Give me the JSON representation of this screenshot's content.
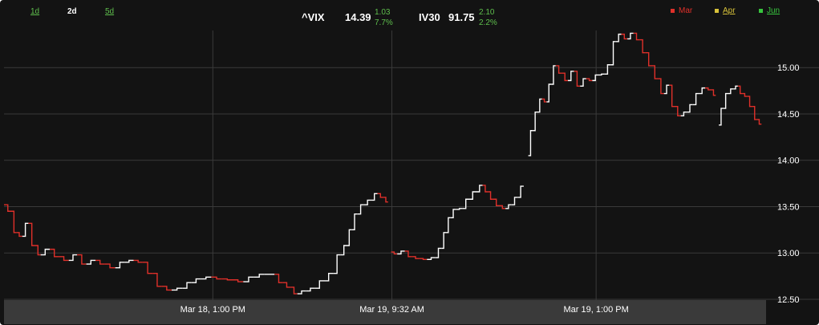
{
  "range_tabs": [
    {
      "label": "1d",
      "active": false
    },
    {
      "label": "2d",
      "active": true
    },
    {
      "label": "5d",
      "active": false
    }
  ],
  "quotes": [
    {
      "symbol": "^VIX",
      "price": "14.39",
      "change": "1.03",
      "change_pct": "7.7%"
    },
    {
      "symbol": "IV30",
      "price": "91.75",
      "change": "2.10",
      "change_pct": "2.2%"
    }
  ],
  "legend": [
    {
      "label": "Mar",
      "color": "#e0302a",
      "active": true
    },
    {
      "label": "Apr",
      "color": "#d8c23a",
      "active": false
    },
    {
      "label": "Jun",
      "color": "#37c63e",
      "active": false
    }
  ],
  "colors": {
    "background": "#131313",
    "axis_band": "#3a3a3a",
    "grid": "#3a3a3a",
    "line_up": "#ffffff",
    "line_down": "#e0302a",
    "change_positive": "#5fbf4d"
  },
  "chart_data": {
    "type": "line",
    "y_axis_position": "right",
    "grid": true,
    "ylim": [
      12.5,
      15.4
    ],
    "y_ticks": [
      {
        "value": 12.5,
        "label": "12.50"
      },
      {
        "value": 13.0,
        "label": "13.00"
      },
      {
        "value": 13.5,
        "label": "13.50"
      },
      {
        "value": 14.0,
        "label": "14.00"
      },
      {
        "value": 14.5,
        "label": "14.50"
      },
      {
        "value": 15.0,
        "label": "15.00"
      }
    ],
    "xlim": [
      0,
      100
    ],
    "x_ticks": [
      {
        "value": 27.4,
        "label": "Mar 18, 1:00 PM"
      },
      {
        "value": 50.9,
        "label": "Mar 19, 9:32 AM"
      },
      {
        "value": 77.7,
        "label": "Mar 19, 1:00 PM"
      }
    ],
    "series": [
      {
        "points": [
          [
            0.0,
            13.52
          ],
          [
            1.0,
            13.45
          ],
          [
            1.6,
            13.22
          ],
          [
            2.4,
            13.18
          ],
          [
            3.2,
            13.32
          ],
          [
            4.1,
            13.08
          ],
          [
            4.8,
            12.98
          ],
          [
            6.0,
            13.04
          ],
          [
            7.2,
            12.96
          ],
          [
            8.5,
            12.92
          ],
          [
            9.6,
            12.98
          ],
          [
            10.8,
            12.88
          ],
          [
            12.0,
            12.92
          ],
          [
            13.2,
            12.88
          ],
          [
            14.6,
            12.84
          ],
          [
            15.8,
            12.9
          ],
          [
            17.0,
            12.92
          ],
          [
            18.2,
            12.9
          ],
          [
            19.5,
            12.78
          ],
          [
            20.7,
            12.64
          ],
          [
            22.0,
            12.6
          ],
          [
            23.4,
            12.62
          ],
          [
            24.6,
            12.68
          ],
          [
            25.8,
            12.72
          ],
          [
            27.2,
            12.74
          ],
          [
            28.6,
            12.72
          ],
          [
            30.0,
            12.71
          ],
          [
            31.4,
            12.69
          ],
          [
            32.8,
            12.74
          ],
          [
            34.2,
            12.77
          ],
          [
            35.5,
            12.77
          ],
          [
            36.6,
            12.68
          ],
          [
            37.6,
            12.63
          ],
          [
            38.5,
            12.56
          ],
          [
            39.6,
            12.59
          ],
          [
            40.8,
            12.62
          ],
          [
            42.0,
            12.7
          ],
          [
            43.2,
            12.78
          ],
          [
            44.2,
            12.98
          ],
          [
            45.0,
            13.08
          ],
          [
            45.6,
            13.25
          ],
          [
            46.4,
            13.42
          ],
          [
            47.2,
            13.52
          ],
          [
            48.2,
            13.57
          ],
          [
            49.0,
            13.64
          ],
          [
            49.8,
            13.6
          ],
          [
            50.4,
            13.55
          ],
          [
            50.8,
            13.01
          ],
          [
            51.6,
            12.99
          ],
          [
            52.6,
            13.02
          ],
          [
            53.5,
            12.96
          ],
          [
            54.5,
            12.94
          ],
          [
            55.5,
            12.93
          ],
          [
            56.6,
            12.95
          ],
          [
            57.4,
            13.05
          ],
          [
            58.0,
            13.22
          ],
          [
            58.6,
            13.38
          ],
          [
            59.3,
            13.47
          ],
          [
            60.2,
            13.48
          ],
          [
            61.0,
            13.58
          ],
          [
            62.0,
            13.66
          ],
          [
            62.8,
            13.73
          ],
          [
            63.5,
            13.66
          ],
          [
            64.2,
            13.58
          ],
          [
            65.0,
            13.51
          ],
          [
            65.8,
            13.48
          ],
          [
            66.6,
            13.52
          ],
          [
            67.4,
            13.6
          ],
          [
            68.2,
            13.72
          ],
          [
            68.8,
            14.05
          ],
          [
            69.4,
            14.32
          ],
          [
            70.0,
            14.52
          ],
          [
            70.6,
            14.66
          ],
          [
            71.2,
            14.63
          ],
          [
            71.8,
            14.82
          ],
          [
            72.4,
            15.02
          ],
          [
            73.2,
            14.94
          ],
          [
            74.0,
            14.86
          ],
          [
            74.8,
            14.96
          ],
          [
            75.6,
            14.8
          ],
          [
            76.4,
            14.88
          ],
          [
            77.2,
            14.86
          ],
          [
            78.0,
            14.92
          ],
          [
            78.8,
            14.93
          ],
          [
            79.6,
            15.03
          ],
          [
            80.3,
            15.28
          ],
          [
            81.0,
            15.36
          ],
          [
            81.8,
            15.31
          ],
          [
            82.6,
            15.37
          ],
          [
            83.4,
            15.3
          ],
          [
            84.2,
            15.16
          ],
          [
            85.0,
            15.02
          ],
          [
            85.8,
            14.88
          ],
          [
            86.6,
            14.72
          ],
          [
            87.3,
            14.81
          ],
          [
            88.0,
            14.58
          ],
          [
            88.8,
            14.48
          ],
          [
            89.6,
            14.52
          ],
          [
            90.4,
            14.6
          ],
          [
            91.2,
            14.72
          ],
          [
            92.0,
            14.78
          ],
          [
            92.8,
            14.76
          ],
          [
            93.4,
            14.7
          ],
          [
            93.8,
            14.38
          ],
          [
            94.4,
            14.56
          ],
          [
            95.0,
            14.72
          ],
          [
            95.7,
            14.77
          ],
          [
            96.3,
            14.8
          ],
          [
            96.9,
            14.72
          ],
          [
            97.5,
            14.69
          ],
          [
            98.2,
            14.58
          ],
          [
            98.8,
            14.44
          ],
          [
            99.4,
            14.39
          ]
        ]
      }
    ]
  }
}
